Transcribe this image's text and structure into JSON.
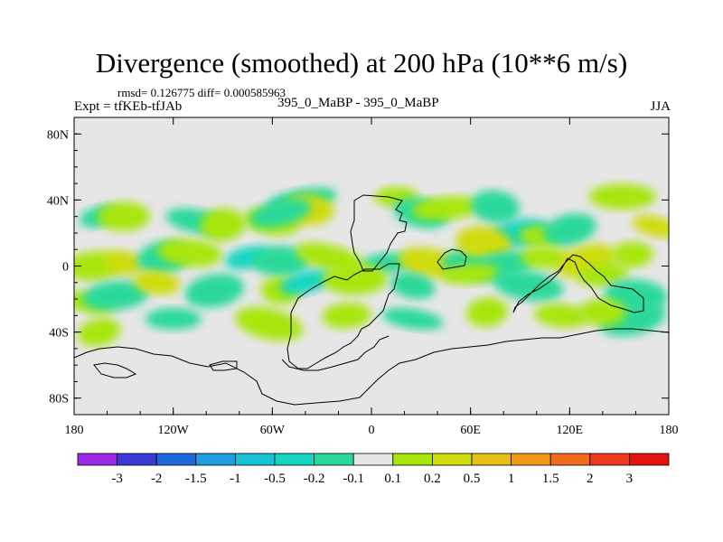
{
  "header": {
    "title": "Divergence (smoothed) at 200 hPa (10**6 m/s)",
    "stats": "rmsd= 0.126775 diff= 0.000585963",
    "expt": "Expt = tfKEb-tfJAb",
    "center_label": "395_0_MaBP - 395_0_MaBP",
    "season": "JJA"
  },
  "chart_data": {
    "type": "heatmap",
    "title": "Divergence (smoothed) at 200 hPa (10**6 m/s)",
    "xlabel": "",
    "ylabel": "",
    "xlim": [
      -180,
      180
    ],
    "ylim": [
      -90,
      90
    ],
    "x_ticks": [
      {
        "value": -180,
        "label": "180"
      },
      {
        "value": -120,
        "label": "120W"
      },
      {
        "value": -60,
        "label": "60W"
      },
      {
        "value": 0,
        "label": "0"
      },
      {
        "value": 60,
        "label": "60E"
      },
      {
        "value": 120,
        "label": "120E"
      },
      {
        "value": 180,
        "label": "180"
      }
    ],
    "y_ticks": [
      {
        "value": 80,
        "label": "80N"
      },
      {
        "value": 40,
        "label": "40N"
      },
      {
        "value": 0,
        "label": "0"
      },
      {
        "value": -40,
        "label": "40S"
      },
      {
        "value": -80,
        "label": "80S"
      }
    ],
    "colorbar": {
      "placement": "bottom",
      "levels": [
        "-3",
        "-2",
        "-1.5",
        "-1",
        "-0.5",
        "-0.2",
        "-0.1",
        "0.1",
        "0.2",
        "0.5",
        "1",
        "1.5",
        "2",
        "3"
      ],
      "colors": [
        "#9b28e6",
        "#3a3ad6",
        "#1e68dc",
        "#1e9ee0",
        "#16c3d6",
        "#14d6c0",
        "#2ad99a",
        "#e6e6e6",
        "#a8e60a",
        "#cfdc0e",
        "#e6c016",
        "#f09a18",
        "#f06a1a",
        "#ee3a1c",
        "#e6120e"
      ]
    },
    "background_color": "#e6e6e6",
    "fields": [
      {
        "lon": -165,
        "lat": 30,
        "value": -0.15
      },
      {
        "lon": -150,
        "lat": 30,
        "value": 0.15
      },
      {
        "lon": -105,
        "lat": 27,
        "value": -0.15
      },
      {
        "lon": -90,
        "lat": 25,
        "value": 0.15
      },
      {
        "lon": -60,
        "lat": 27,
        "value": 0.15
      },
      {
        "lon": -42,
        "lat": 40,
        "value": -0.15
      },
      {
        "lon": -38,
        "lat": 34,
        "value": 0.3
      },
      {
        "lon": -55,
        "lat": 32,
        "value": -0.15
      },
      {
        "lon": 15,
        "lat": 42,
        "value": 0.15
      },
      {
        "lon": 30,
        "lat": 32,
        "value": -0.15
      },
      {
        "lon": 45,
        "lat": 35,
        "value": 0.15
      },
      {
        "lon": 75,
        "lat": 36,
        "value": -0.15
      },
      {
        "lon": 90,
        "lat": 20,
        "value": -0.3
      },
      {
        "lon": 102,
        "lat": 18,
        "value": 0.15
      },
      {
        "lon": 120,
        "lat": 22,
        "value": -0.15
      },
      {
        "lon": 152,
        "lat": 42,
        "value": 0.15
      },
      {
        "lon": 172,
        "lat": 24,
        "value": 0.3
      },
      {
        "lon": -168,
        "lat": 0,
        "value": 0.15
      },
      {
        "lon": -150,
        "lat": 2,
        "value": 0.3
      },
      {
        "lon": -126,
        "lat": 5,
        "value": -0.15
      },
      {
        "lon": -110,
        "lat": 8,
        "value": 0.15
      },
      {
        "lon": -75,
        "lat": 5,
        "value": -0.3
      },
      {
        "lon": -55,
        "lat": 3,
        "value": -0.15
      },
      {
        "lon": -25,
        "lat": 5,
        "value": 0.15
      },
      {
        "lon": 10,
        "lat": 2,
        "value": -0.15
      },
      {
        "lon": 35,
        "lat": 2,
        "value": 0.3
      },
      {
        "lon": 56,
        "lat": 3,
        "value": -0.15
      },
      {
        "lon": 68,
        "lat": 14,
        "value": 0.3
      },
      {
        "lon": 78,
        "lat": 0,
        "value": -0.15
      },
      {
        "lon": 105,
        "lat": 5,
        "value": 0.15
      },
      {
        "lon": 130,
        "lat": 3,
        "value": 0.3
      },
      {
        "lon": 158,
        "lat": 7,
        "value": 0.15
      },
      {
        "lon": -172,
        "lat": -22,
        "value": 0.15
      },
      {
        "lon": -155,
        "lat": -18,
        "value": -0.15
      },
      {
        "lon": -130,
        "lat": -10,
        "value": 0.3
      },
      {
        "lon": -95,
        "lat": -15,
        "value": -0.15
      },
      {
        "lon": -55,
        "lat": -15,
        "value": 0.15
      },
      {
        "lon": -40,
        "lat": -10,
        "value": -0.3
      },
      {
        "lon": -10,
        "lat": -8,
        "value": 0.15
      },
      {
        "lon": 25,
        "lat": -12,
        "value": -0.15
      },
      {
        "lon": 60,
        "lat": -5,
        "value": 0.15
      },
      {
        "lon": 95,
        "lat": -12,
        "value": -0.15
      },
      {
        "lon": 140,
        "lat": -5,
        "value": 0.15
      },
      {
        "lon": 160,
        "lat": -18,
        "value": -0.15
      },
      {
        "lon": -165,
        "lat": -40,
        "value": 0.15
      },
      {
        "lon": -120,
        "lat": -32,
        "value": -0.15
      },
      {
        "lon": -62,
        "lat": -35,
        "value": 0.15
      },
      {
        "lon": -15,
        "lat": -30,
        "value": 0.15
      },
      {
        "lon": 25,
        "lat": -32,
        "value": -0.15
      },
      {
        "lon": 70,
        "lat": -28,
        "value": 0.15
      },
      {
        "lon": 115,
        "lat": -30,
        "value": 0.15
      },
      {
        "lon": 158,
        "lat": -32,
        "value": -0.15
      },
      {
        "lon": 140,
        "lat": -28,
        "value": 0.15
      }
    ]
  }
}
